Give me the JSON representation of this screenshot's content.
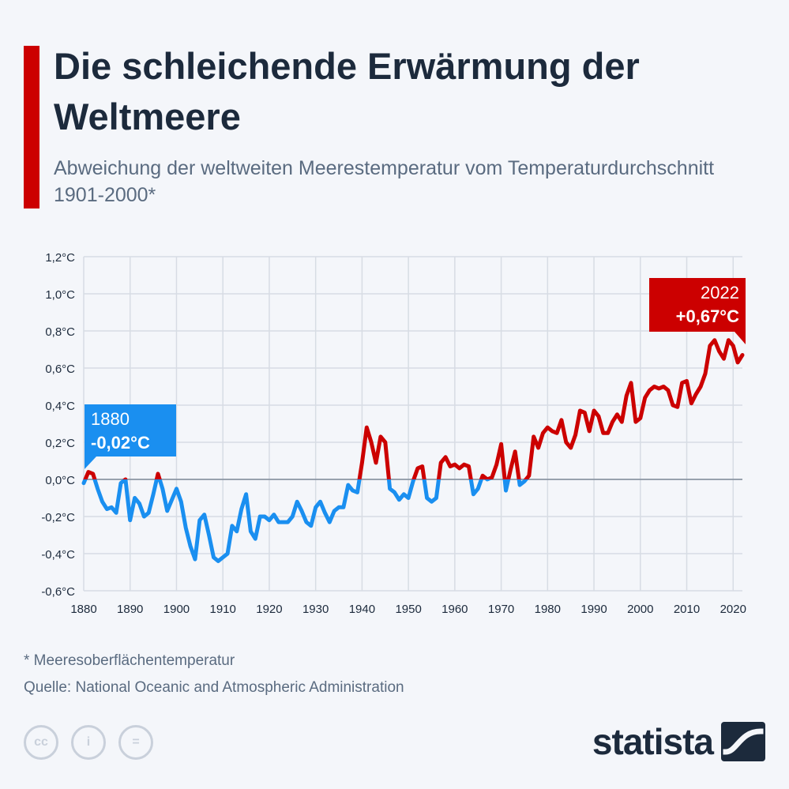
{
  "header": {
    "title": "Die schleichende Erwärmung der Weltmeere",
    "subtitle": "Abweichung der weltweiten Meerestemperatur vom Temperaturdurchschnitt 1901-2000*"
  },
  "colors": {
    "accent": "#cc0000",
    "warm": "#cc0000",
    "cold": "#1a8ff0",
    "title": "#1c2a3c",
    "text": "#5a6b80",
    "grid": "#d7dce4",
    "zero_line": "#7f8a99",
    "background": "#f4f6fa"
  },
  "chart_data": {
    "type": "line",
    "xlabel": "",
    "ylabel": "",
    "xlim": [
      1880,
      2022
    ],
    "ylim": [
      -0.6,
      1.2
    ],
    "grid": true,
    "x_ticks": [
      1880,
      1890,
      1900,
      1910,
      1920,
      1930,
      1940,
      1950,
      1960,
      1970,
      1980,
      1990,
      2000,
      2010,
      2020
    ],
    "y_ticks": [
      -0.6,
      -0.4,
      -0.2,
      0.0,
      0.2,
      0.4,
      0.6,
      0.8,
      1.0,
      1.2
    ],
    "y_tick_labels": [
      "-0,6°C",
      "-0,4°C",
      "-0,2°C",
      "0,0°C",
      "0,2°C",
      "0,4°C",
      "0,6°C",
      "0,8°C",
      "1,0°C",
      "1,2°C"
    ],
    "coloring": "values above 0 in warm color, below 0 in cold color",
    "series": [
      {
        "x": [
          1880,
          1881,
          1882,
          1883,
          1884,
          1885,
          1886,
          1887,
          1888,
          1889,
          1890,
          1891,
          1892,
          1893,
          1894,
          1895,
          1896,
          1897,
          1898,
          1899,
          1900,
          1901,
          1902,
          1903,
          1904,
          1905,
          1906,
          1907,
          1908,
          1909,
          1910,
          1911,
          1912,
          1913,
          1914,
          1915,
          1916,
          1917,
          1918,
          1919,
          1920,
          1921,
          1922,
          1923,
          1924,
          1925,
          1926,
          1927,
          1928,
          1929,
          1930,
          1931,
          1932,
          1933,
          1934,
          1935,
          1936,
          1937,
          1938,
          1939,
          1940,
          1941,
          1942,
          1943,
          1944,
          1945,
          1946,
          1947,
          1948,
          1949,
          1950,
          1951,
          1952,
          1953,
          1954,
          1955,
          1956,
          1957,
          1958,
          1959,
          1960,
          1961,
          1962,
          1963,
          1964,
          1965,
          1966,
          1967,
          1968,
          1969,
          1970,
          1971,
          1972,
          1973,
          1974,
          1975,
          1976,
          1977,
          1978,
          1979,
          1980,
          1981,
          1982,
          1983,
          1984,
          1985,
          1986,
          1987,
          1988,
          1989,
          1990,
          1991,
          1992,
          1993,
          1994,
          1995,
          1996,
          1997,
          1998,
          1999,
          2000,
          2001,
          2002,
          2003,
          2004,
          2005,
          2006,
          2007,
          2008,
          2009,
          2010,
          2011,
          2012,
          2013,
          2014,
          2015,
          2016,
          2017,
          2018,
          2019,
          2020,
          2021,
          2022
        ],
        "values": [
          -0.02,
          0.04,
          0.03,
          -0.05,
          -0.12,
          -0.16,
          -0.15,
          -0.18,
          -0.02,
          0.0,
          -0.22,
          -0.1,
          -0.13,
          -0.2,
          -0.18,
          -0.08,
          0.03,
          -0.05,
          -0.17,
          -0.11,
          -0.05,
          -0.12,
          -0.26,
          -0.36,
          -0.43,
          -0.22,
          -0.19,
          -0.3,
          -0.42,
          -0.44,
          -0.42,
          -0.4,
          -0.25,
          -0.28,
          -0.16,
          -0.08,
          -0.28,
          -0.32,
          -0.2,
          -0.2,
          -0.22,
          -0.19,
          -0.23,
          -0.23,
          -0.23,
          -0.2,
          -0.12,
          -0.17,
          -0.23,
          -0.25,
          -0.15,
          -0.12,
          -0.18,
          -0.23,
          -0.17,
          -0.15,
          -0.15,
          -0.03,
          -0.06,
          -0.07,
          0.09,
          0.28,
          0.2,
          0.09,
          0.23,
          0.2,
          -0.05,
          -0.07,
          -0.11,
          -0.08,
          -0.1,
          -0.01,
          0.06,
          0.07,
          -0.1,
          -0.12,
          -0.1,
          0.09,
          0.12,
          0.07,
          0.08,
          0.06,
          0.08,
          0.07,
          -0.08,
          -0.05,
          0.02,
          0.0,
          0.01,
          0.08,
          0.19,
          -0.06,
          0.05,
          0.15,
          -0.03,
          -0.01,
          0.02,
          0.23,
          0.17,
          0.25,
          0.28,
          0.26,
          0.25,
          0.32,
          0.2,
          0.17,
          0.24,
          0.37,
          0.36,
          0.26,
          0.37,
          0.34,
          0.25,
          0.25,
          0.31,
          0.35,
          0.31,
          0.45,
          0.52,
          0.31,
          0.33,
          0.44,
          0.48,
          0.5,
          0.49,
          0.5,
          0.48,
          0.4,
          0.39,
          0.52,
          0.53,
          0.41,
          0.46,
          0.5,
          0.57,
          0.72,
          0.75,
          0.69,
          0.65,
          0.75,
          0.72,
          0.63,
          0.67
        ]
      }
    ],
    "annotations": [
      {
        "x": 1880,
        "y": -0.02,
        "label_year": "1880",
        "label_value": "-0,02°C"
      },
      {
        "x": 2022,
        "y": 0.67,
        "label_year": "2022",
        "label_value": "+0,67°C"
      }
    ]
  },
  "footer": {
    "footnote": "* Meeresoberflächentemperatur",
    "source": "Quelle: National Oceanic and Atmospheric Administration",
    "license_icons": [
      "cc-icon",
      "by-icon",
      "nd-icon"
    ],
    "license_glyphs": [
      "cc",
      "i",
      "="
    ],
    "brand": "statista"
  }
}
